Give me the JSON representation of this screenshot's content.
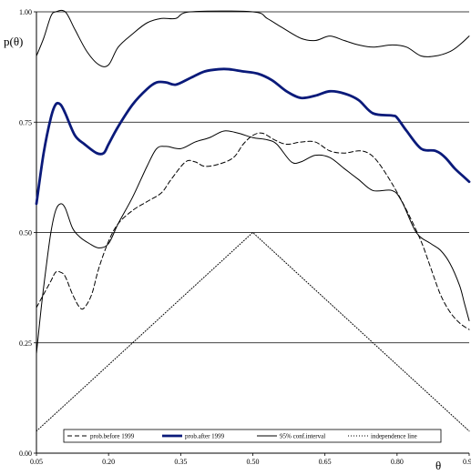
{
  "chart_data": {
    "type": "line",
    "xlabel": "θ",
    "ylabel": "p(θ)",
    "xlim": [
      0.05,
      0.95
    ],
    "ylim": [
      0,
      1
    ],
    "x_ticks": [
      "0.05",
      "0.20",
      "0.35",
      "0.50",
      "0.65",
      "0.80",
      "0.95"
    ],
    "y_ticks": [
      "0.00",
      "0.25",
      "0.50",
      "0.75",
      "1.00"
    ],
    "grid": "horizontal",
    "legend_position": "bottom",
    "series": [
      {
        "name": "prob.before 1999",
        "style": "dashed",
        "color": "#000000",
        "points": [
          [
            0.05,
            0.33
          ],
          [
            0.065,
            0.36
          ],
          [
            0.08,
            0.39
          ],
          [
            0.09,
            0.41
          ],
          [
            0.1,
            0.41
          ],
          [
            0.11,
            0.4
          ],
          [
            0.125,
            0.36
          ],
          [
            0.14,
            0.33
          ],
          [
            0.15,
            0.33
          ],
          [
            0.165,
            0.36
          ],
          [
            0.18,
            0.42
          ],
          [
            0.2,
            0.48
          ],
          [
            0.22,
            0.52
          ],
          [
            0.25,
            0.55
          ],
          [
            0.28,
            0.57
          ],
          [
            0.31,
            0.59
          ],
          [
            0.33,
            0.62
          ],
          [
            0.36,
            0.66
          ],
          [
            0.38,
            0.66
          ],
          [
            0.4,
            0.65
          ],
          [
            0.43,
            0.655
          ],
          [
            0.46,
            0.67
          ],
          [
            0.48,
            0.7
          ],
          [
            0.5,
            0.72
          ],
          [
            0.52,
            0.725
          ],
          [
            0.545,
            0.71
          ],
          [
            0.57,
            0.7
          ],
          [
            0.6,
            0.705
          ],
          [
            0.63,
            0.705
          ],
          [
            0.66,
            0.685
          ],
          [
            0.69,
            0.68
          ],
          [
            0.72,
            0.685
          ],
          [
            0.74,
            0.68
          ],
          [
            0.76,
            0.66
          ],
          [
            0.79,
            0.61
          ],
          [
            0.82,
            0.55
          ],
          [
            0.85,
            0.48
          ],
          [
            0.87,
            0.42
          ],
          [
            0.89,
            0.36
          ],
          [
            0.91,
            0.32
          ],
          [
            0.93,
            0.295
          ],
          [
            0.95,
            0.28
          ]
        ]
      },
      {
        "name": "prob.after 1999",
        "style": "thick",
        "color": "#0a1a7a",
        "points": [
          [
            0.05,
            0.565
          ],
          [
            0.065,
            0.68
          ],
          [
            0.08,
            0.76
          ],
          [
            0.09,
            0.79
          ],
          [
            0.1,
            0.79
          ],
          [
            0.11,
            0.77
          ],
          [
            0.13,
            0.72
          ],
          [
            0.15,
            0.7
          ],
          [
            0.175,
            0.68
          ],
          [
            0.19,
            0.68
          ],
          [
            0.2,
            0.7
          ],
          [
            0.22,
            0.74
          ],
          [
            0.25,
            0.79
          ],
          [
            0.28,
            0.825
          ],
          [
            0.3,
            0.84
          ],
          [
            0.32,
            0.84
          ],
          [
            0.34,
            0.835
          ],
          [
            0.37,
            0.85
          ],
          [
            0.4,
            0.865
          ],
          [
            0.43,
            0.87
          ],
          [
            0.45,
            0.87
          ],
          [
            0.48,
            0.865
          ],
          [
            0.51,
            0.86
          ],
          [
            0.54,
            0.845
          ],
          [
            0.57,
            0.82
          ],
          [
            0.6,
            0.805
          ],
          [
            0.63,
            0.81
          ],
          [
            0.66,
            0.82
          ],
          [
            0.69,
            0.815
          ],
          [
            0.72,
            0.8
          ],
          [
            0.75,
            0.77
          ],
          [
            0.79,
            0.765
          ],
          [
            0.8,
            0.76
          ],
          [
            0.82,
            0.73
          ],
          [
            0.85,
            0.69
          ],
          [
            0.88,
            0.685
          ],
          [
            0.9,
            0.67
          ],
          [
            0.92,
            0.645
          ],
          [
            0.94,
            0.625
          ],
          [
            0.95,
            0.615
          ]
        ]
      },
      {
        "name": "95% conf.interval",
        "style": "thin",
        "color": "#000000",
        "points": [
          [
            0.05,
            0.225
          ],
          [
            0.06,
            0.33
          ],
          [
            0.07,
            0.42
          ],
          [
            0.08,
            0.5
          ],
          [
            0.09,
            0.55
          ],
          [
            0.1,
            0.565
          ],
          [
            0.11,
            0.555
          ],
          [
            0.125,
            0.51
          ],
          [
            0.14,
            0.49
          ],
          [
            0.16,
            0.475
          ],
          [
            0.18,
            0.465
          ],
          [
            0.2,
            0.475
          ],
          [
            0.22,
            0.52
          ],
          [
            0.25,
            0.58
          ],
          [
            0.28,
            0.65
          ],
          [
            0.3,
            0.69
          ],
          [
            0.32,
            0.695
          ],
          [
            0.35,
            0.69
          ],
          [
            0.38,
            0.705
          ],
          [
            0.41,
            0.715
          ],
          [
            0.44,
            0.73
          ],
          [
            0.47,
            0.725
          ],
          [
            0.5,
            0.715
          ],
          [
            0.53,
            0.71
          ],
          [
            0.55,
            0.7
          ],
          [
            0.58,
            0.66
          ],
          [
            0.6,
            0.66
          ],
          [
            0.63,
            0.675
          ],
          [
            0.66,
            0.67
          ],
          [
            0.69,
            0.645
          ],
          [
            0.72,
            0.62
          ],
          [
            0.75,
            0.595
          ],
          [
            0.79,
            0.595
          ],
          [
            0.81,
            0.57
          ],
          [
            0.84,
            0.5
          ],
          [
            0.87,
            0.475
          ],
          [
            0.89,
            0.46
          ],
          [
            0.91,
            0.43
          ],
          [
            0.93,
            0.38
          ],
          [
            0.94,
            0.34
          ],
          [
            0.95,
            0.3
          ]
        ]
      },
      {
        "name": "95% conf.interval upper",
        "style": "thin",
        "color": "#000000",
        "points": [
          [
            0.05,
            0.9
          ],
          [
            0.065,
            0.94
          ],
          [
            0.08,
            0.99
          ],
          [
            0.09,
            1.0
          ],
          [
            0.11,
            1.0
          ],
          [
            0.13,
            0.96
          ],
          [
            0.155,
            0.91
          ],
          [
            0.18,
            0.88
          ],
          [
            0.2,
            0.88
          ],
          [
            0.22,
            0.92
          ],
          [
            0.25,
            0.95
          ],
          [
            0.28,
            0.975
          ],
          [
            0.31,
            0.985
          ],
          [
            0.34,
            0.985
          ],
          [
            0.37,
            1.0
          ],
          [
            0.5,
            1.0
          ],
          [
            0.53,
            0.985
          ],
          [
            0.56,
            0.965
          ],
          [
            0.6,
            0.94
          ],
          [
            0.63,
            0.935
          ],
          [
            0.66,
            0.945
          ],
          [
            0.69,
            0.935
          ],
          [
            0.72,
            0.925
          ],
          [
            0.75,
            0.92
          ],
          [
            0.79,
            0.925
          ],
          [
            0.82,
            0.92
          ],
          [
            0.85,
            0.9
          ],
          [
            0.88,
            0.9
          ],
          [
            0.91,
            0.91
          ],
          [
            0.93,
            0.925
          ],
          [
            0.95,
            0.945
          ]
        ]
      },
      {
        "name": "independence line",
        "style": "dotted",
        "color": "#000000",
        "points": [
          [
            0.05,
            0.05
          ],
          [
            0.5,
            0.5
          ],
          [
            0.95,
            0.05
          ]
        ]
      }
    ],
    "legend": [
      {
        "label": "prob.before 1999",
        "style": "dashed"
      },
      {
        "label": "prob.after 1999",
        "style": "thick"
      },
      {
        "label": "95% conf.interval",
        "style": "thin"
      },
      {
        "label": "independence line",
        "style": "dotted"
      }
    ]
  },
  "colors": {
    "background": "#ffffff",
    "grid": "#000000",
    "after_1999": "#0a1a7a",
    "text": "#000000"
  }
}
